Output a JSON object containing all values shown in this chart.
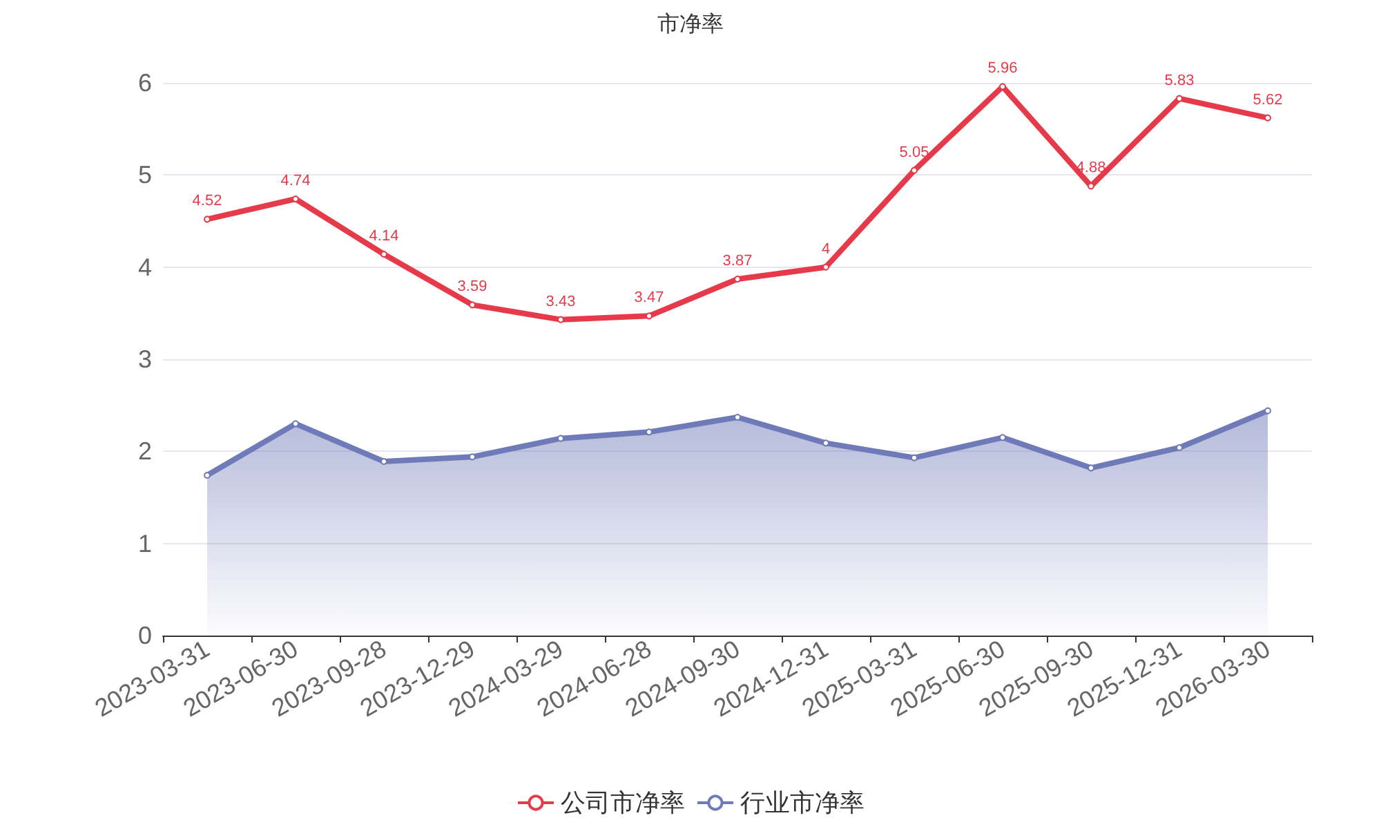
{
  "chart_data": {
    "type": "line",
    "title": "市净率",
    "categories": [
      "2023-03-31",
      "2023-06-30",
      "2023-09-28",
      "2023-12-29",
      "2024-03-29",
      "2024-06-28",
      "2024-09-30",
      "2024-12-31",
      "2025-03-31",
      "2025-06-30",
      "2025-09-30",
      "2025-12-31",
      "2026-03-30"
    ],
    "series": [
      {
        "name": "公司市净率",
        "color": "#e63a4b",
        "values": [
          4.52,
          4.74,
          4.14,
          3.59,
          3.43,
          3.47,
          3.87,
          4,
          5.05,
          5.96,
          4.88,
          5.83,
          5.62
        ],
        "value_labels": [
          "4.52",
          "4.74",
          "4.14",
          "3.59",
          "3.43",
          "3.47",
          "3.87",
          "4",
          "5.05",
          "5.96",
          "4.88",
          "5.83",
          "5.62"
        ]
      },
      {
        "name": "行业市净率",
        "color": "#6f7ab8",
        "type": "area",
        "values": [
          1.74,
          2.3,
          1.89,
          1.94,
          2.14,
          2.21,
          2.37,
          2.09,
          1.93,
          2.15,
          1.82,
          2.04,
          2.44
        ]
      }
    ],
    "ylim": [
      0,
      6
    ],
    "yticks": [
      0,
      1,
      2,
      3,
      4,
      5,
      6
    ],
    "grid": "y",
    "legend": "bottom",
    "marker": "circle",
    "line_style": "solid"
  }
}
